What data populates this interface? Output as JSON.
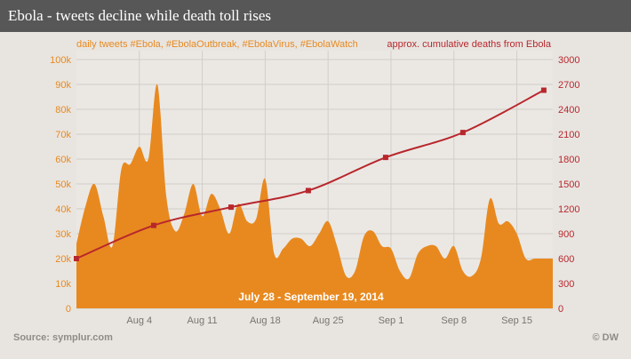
{
  "header": {
    "title": "Ebola - tweets decline while death toll rises"
  },
  "footer": {
    "source": "Source: symplur.com",
    "credit": "© DW"
  },
  "chart_data": {
    "type": "area",
    "title": "Ebola - tweets decline while death toll rises",
    "annotation": "July 28 - September 19, 2014",
    "x_tick_labels": [
      "Aug 4",
      "Aug 11",
      "Aug 18",
      "Aug 25",
      "Sep 1",
      "Sep 8",
      "Sep 15"
    ],
    "x_tick_positions": [
      7,
      14,
      21,
      28,
      35,
      42,
      49
    ],
    "xlim": [
      0,
      53
    ],
    "legend": {
      "left": "daily tweets #Ebola, #EbolaOutbreak, #EbolaVirus, #EbolaWatch",
      "right": "approx. cumulative deaths from Ebola"
    },
    "y_left": {
      "ylim": [
        0,
        100000
      ],
      "ticks": [
        0,
        10000,
        20000,
        30000,
        40000,
        50000,
        60000,
        70000,
        80000,
        90000,
        100000
      ],
      "tick_labels": [
        "0",
        "10k",
        "20k",
        "30k",
        "40k",
        "50k",
        "60k",
        "70k",
        "80k",
        "90k",
        "100k"
      ]
    },
    "y_right": {
      "ylim": [
        0,
        3000
      ],
      "ticks": [
        0,
        300,
        600,
        900,
        1200,
        1500,
        1800,
        2100,
        2400,
        2700,
        3000
      ],
      "tick_labels": [
        "0",
        "300",
        "600",
        "900",
        "1200",
        "1500",
        "1800",
        "2100",
        "2400",
        "2700",
        "3000"
      ]
    },
    "series": [
      {
        "name": "daily tweets #Ebola, #EbolaOutbreak, #EbolaVirus, #EbolaWatch",
        "axis": "left",
        "type": "area",
        "color": "#e8891f",
        "x": [
          0,
          1,
          2,
          3,
          4,
          5,
          6,
          7,
          8,
          9,
          10,
          11,
          12,
          13,
          14,
          15,
          16,
          17,
          18,
          19,
          20,
          21,
          22,
          23,
          24,
          25,
          26,
          27,
          28,
          29,
          30,
          31,
          32,
          33,
          34,
          35,
          36,
          37,
          38,
          39,
          40,
          41,
          42,
          43,
          44,
          45,
          46,
          47,
          48,
          49,
          50,
          51,
          52,
          53
        ],
        "values": [
          26000,
          41000,
          50000,
          37000,
          25000,
          56000,
          58000,
          65000,
          60000,
          90000,
          45000,
          31000,
          38000,
          50000,
          37000,
          46000,
          40000,
          30000,
          42000,
          35000,
          36000,
          52000,
          22000,
          24000,
          28000,
          28000,
          25000,
          30000,
          35000,
          25000,
          13000,
          15000,
          29000,
          31000,
          25000,
          24000,
          15000,
          12000,
          22000,
          25000,
          25000,
          20000,
          25000,
          15000,
          13000,
          20000,
          44000,
          34000,
          35000,
          30000,
          20000,
          20000,
          20000,
          20000
        ]
      },
      {
        "name": "approx. cumulative deaths from Ebola",
        "axis": "right",
        "type": "line",
        "color": "#b8272c",
        "x": [
          0,
          8.6,
          17.2,
          25.8,
          34.4,
          43,
          52
        ],
        "values": [
          600,
          1000,
          1220,
          1420,
          1820,
          2120,
          2630
        ]
      }
    ],
    "grid": true
  }
}
